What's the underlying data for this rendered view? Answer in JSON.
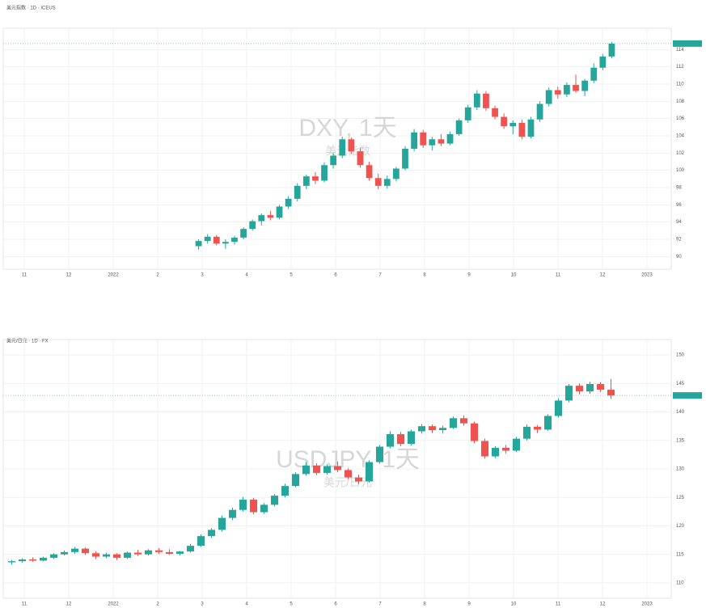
{
  "chart_data": [
    {
      "type": "candlestick",
      "title": "美元指数 · 1D · ICEUS",
      "watermark": "DXY, 1天",
      "watermark_sub": "美元指数",
      "up_color": "#26a69a",
      "down_color": "#ef5350",
      "ylim": [
        89,
        116
      ],
      "yticks": [
        90,
        92,
        94,
        96,
        98,
        100,
        102,
        104,
        106,
        108,
        110,
        112,
        114
      ],
      "x_labels": [
        "11",
        "12",
        "2022",
        "2",
        "3",
        "4",
        "5",
        "6",
        "7",
        "8",
        "9",
        "10",
        "11",
        "12",
        "2023"
      ],
      "candles": [
        [
          91.2,
          92.0,
          90.8,
          91.8
        ],
        [
          91.8,
          92.6,
          91.5,
          92.3
        ],
        [
          92.3,
          92.5,
          91.3,
          91.5
        ],
        [
          91.5,
          92.0,
          90.9,
          91.7
        ],
        [
          91.7,
          92.4,
          91.4,
          92.2
        ],
        [
          92.2,
          93.4,
          92.0,
          93.2
        ],
        [
          93.2,
          94.3,
          93.0,
          94.1
        ],
        [
          94.1,
          95.0,
          93.6,
          94.8
        ],
        [
          94.8,
          95.3,
          94.2,
          94.5
        ],
        [
          94.5,
          96.0,
          94.3,
          95.8
        ],
        [
          95.8,
          97.0,
          95.5,
          96.7
        ],
        [
          96.7,
          98.5,
          96.4,
          98.2
        ],
        [
          98.2,
          99.5,
          97.8,
          99.3
        ],
        [
          99.3,
          99.8,
          98.4,
          98.8
        ],
        [
          98.8,
          100.9,
          98.6,
          100.6
        ],
        [
          100.6,
          102.0,
          100.2,
          101.7
        ],
        [
          101.7,
          103.9,
          101.4,
          103.6
        ],
        [
          103.6,
          103.8,
          101.9,
          102.2
        ],
        [
          102.2,
          102.6,
          100.3,
          100.6
        ],
        [
          100.6,
          101.0,
          98.8,
          99.1
        ],
        [
          99.1,
          99.6,
          97.8,
          98.2
        ],
        [
          98.2,
          99.4,
          97.9,
          99.0
        ],
        [
          99.0,
          100.4,
          98.7,
          100.2
        ],
        [
          100.2,
          102.8,
          100.0,
          102.5
        ],
        [
          102.5,
          104.8,
          102.2,
          104.4
        ],
        [
          104.4,
          104.7,
          102.6,
          102.9
        ],
        [
          102.9,
          103.9,
          102.3,
          103.6
        ],
        [
          103.6,
          104.2,
          102.8,
          103.1
        ],
        [
          103.1,
          104.5,
          102.9,
          104.2
        ],
        [
          104.2,
          106.0,
          104.0,
          105.8
        ],
        [
          105.8,
          107.6,
          105.5,
          107.3
        ],
        [
          107.3,
          109.3,
          107.0,
          108.9
        ],
        [
          108.9,
          109.2,
          106.9,
          107.2
        ],
        [
          107.2,
          107.5,
          105.9,
          106.2
        ],
        [
          106.2,
          106.6,
          104.8,
          105.1
        ],
        [
          105.1,
          105.8,
          104.2,
          105.5
        ],
        [
          105.5,
          105.9,
          103.6,
          103.9
        ],
        [
          103.9,
          106.2,
          103.7,
          105.9
        ],
        [
          105.9,
          108.0,
          105.6,
          107.7
        ],
        [
          107.7,
          109.6,
          107.4,
          109.3
        ],
        [
          109.3,
          109.7,
          108.3,
          108.8
        ],
        [
          108.8,
          110.2,
          108.5,
          109.9
        ],
        [
          109.9,
          111.1,
          109.0,
          109.2
        ],
        [
          109.2,
          110.6,
          108.6,
          110.4
        ],
        [
          110.4,
          112.4,
          110.1,
          111.9
        ],
        [
          111.9,
          113.5,
          111.6,
          113.2
        ],
        [
          113.2,
          114.9,
          113.0,
          114.7
        ]
      ]
    },
    {
      "type": "candlestick",
      "title": "美元/日元 · 1D · FX",
      "watermark": "USDJPY, 1天",
      "watermark_sub": "美元/日元",
      "up_color": "#26a69a",
      "down_color": "#ef5350",
      "ylim": [
        108,
        152
      ],
      "yticks": [
        110,
        115,
        120,
        125,
        130,
        135,
        140,
        145,
        150
      ],
      "x_labels": [
        "11",
        "12",
        "2022",
        "2",
        "3",
        "4",
        "5",
        "6",
        "7",
        "8",
        "9",
        "10",
        "11",
        "12",
        "2023"
      ],
      "candles": [
        [
          113.6,
          114.0,
          113.2,
          113.8
        ],
        [
          113.8,
          114.3,
          113.5,
          114.1
        ],
        [
          114.1,
          114.5,
          113.7,
          113.9
        ],
        [
          113.9,
          114.6,
          113.8,
          114.4
        ],
        [
          114.4,
          115.2,
          114.2,
          115.0
        ],
        [
          115.0,
          115.7,
          114.8,
          115.4
        ],
        [
          115.4,
          116.3,
          115.1,
          116.0
        ],
        [
          116.0,
          116.2,
          114.9,
          115.2
        ],
        [
          115.2,
          115.5,
          114.2,
          114.6
        ],
        [
          114.6,
          115.3,
          114.3,
          115.0
        ],
        [
          115.0,
          115.2,
          114.0,
          114.4
        ],
        [
          114.4,
          115.5,
          114.2,
          115.3
        ],
        [
          115.3,
          115.8,
          114.7,
          115.0
        ],
        [
          115.0,
          115.9,
          114.8,
          115.7
        ],
        [
          115.7,
          116.1,
          115.1,
          115.4
        ],
        [
          115.4,
          115.9,
          114.9,
          115.1
        ],
        [
          115.1,
          115.6,
          114.8,
          115.5
        ],
        [
          115.5,
          116.8,
          115.3,
          116.5
        ],
        [
          116.5,
          118.5,
          116.3,
          118.2
        ],
        [
          118.2,
          119.6,
          117.9,
          119.3
        ],
        [
          119.3,
          121.8,
          119.0,
          121.4
        ],
        [
          121.4,
          123.2,
          121.0,
          122.8
        ],
        [
          122.8,
          125.1,
          122.5,
          124.6
        ],
        [
          124.6,
          124.9,
          122.0,
          122.4
        ],
        [
          122.4,
          124.0,
          122.1,
          123.7
        ],
        [
          123.7,
          125.6,
          123.4,
          125.3
        ],
        [
          125.3,
          127.4,
          125.0,
          127.0
        ],
        [
          127.0,
          129.4,
          126.8,
          129.1
        ],
        [
          129.1,
          131.2,
          128.8,
          130.6
        ],
        [
          130.6,
          131.0,
          128.9,
          129.3
        ],
        [
          129.3,
          130.8,
          129.0,
          130.5
        ],
        [
          130.5,
          131.3,
          129.4,
          129.8
        ],
        [
          129.8,
          130.1,
          128.2,
          128.5
        ],
        [
          128.5,
          129.0,
          127.3,
          127.8
        ],
        [
          127.8,
          131.5,
          127.6,
          131.2
        ],
        [
          131.2,
          134.2,
          130.9,
          133.9
        ],
        [
          133.9,
          136.6,
          133.6,
          136.1
        ],
        [
          136.1,
          136.5,
          134.0,
          134.4
        ],
        [
          134.4,
          136.9,
          134.1,
          136.6
        ],
        [
          136.6,
          137.9,
          136.2,
          137.5
        ],
        [
          137.5,
          137.8,
          136.3,
          136.8
        ],
        [
          136.8,
          137.6,
          136.2,
          137.2
        ],
        [
          137.2,
          139.2,
          137.0,
          138.9
        ],
        [
          138.9,
          139.4,
          137.6,
          138.0
        ],
        [
          138.0,
          138.3,
          134.5,
          134.9
        ],
        [
          134.9,
          135.3,
          131.8,
          132.2
        ],
        [
          132.2,
          134.0,
          131.9,
          133.7
        ],
        [
          133.7,
          134.2,
          132.7,
          133.2
        ],
        [
          133.2,
          135.6,
          133.0,
          135.3
        ],
        [
          135.3,
          137.8,
          135.0,
          137.4
        ],
        [
          137.4,
          137.7,
          136.3,
          136.9
        ],
        [
          136.9,
          139.6,
          136.7,
          139.3
        ],
        [
          139.3,
          142.4,
          139.0,
          142.0
        ],
        [
          142.0,
          144.9,
          141.7,
          144.6
        ],
        [
          144.6,
          145.0,
          143.1,
          143.6
        ],
        [
          143.6,
          145.3,
          143.2,
          144.9
        ],
        [
          144.9,
          145.2,
          143.5,
          143.9
        ],
        [
          143.9,
          145.8,
          142.3,
          142.9
        ]
      ]
    }
  ]
}
